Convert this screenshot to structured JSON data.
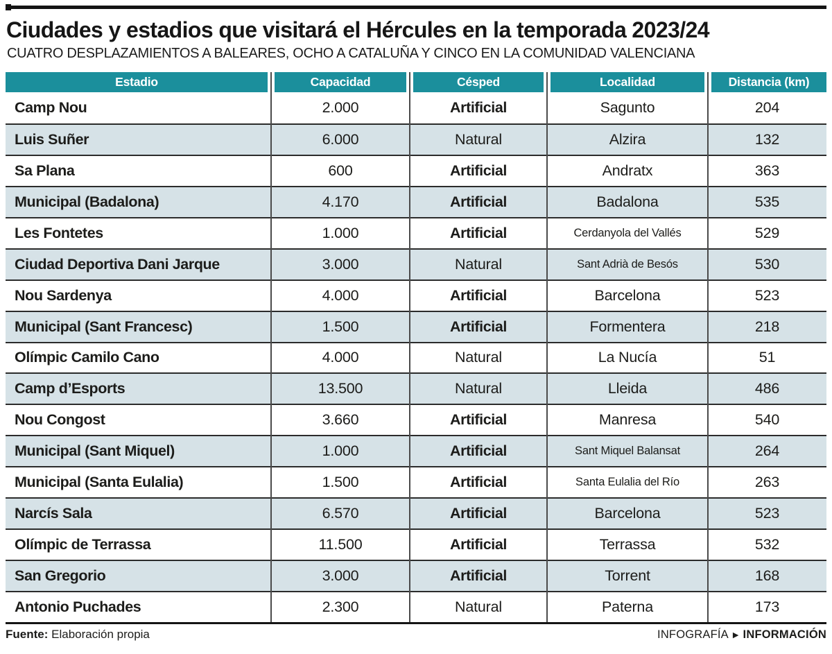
{
  "header": {
    "title": "Ciudades y estadios que visitará el Hércules en la temporada 2023/24",
    "subtitle": "CUATRO DESPLAZAMIENTOS A BALEARES, OCHO A CATALUÑA Y CINCO EN LA COMUNIDAD VALENCIANA"
  },
  "chart_data": {
    "type": "table",
    "title": "Ciudades y estadios que visitará el Hércules en la temporada 2023/24",
    "subtitle": "CUATRO DESPLAZAMIENTOS A BALEARES, OCHO A CATALUÑA Y CINCO EN LA COMUNIDAD VALENCIANA",
    "columns": [
      "Estadio",
      "Capacidad",
      "Césped",
      "Localidad",
      "Distancia (km)"
    ],
    "rows": [
      {
        "estadio": "Camp Nou",
        "capacidad": "2.000",
        "cesped": "Artificial",
        "cesped_bold": true,
        "localidad": "Sagunto",
        "localidad_small": false,
        "distancia": "204"
      },
      {
        "estadio": "Luis Suñer",
        "capacidad": "6.000",
        "cesped": "Natural",
        "cesped_bold": false,
        "localidad": "Alzira",
        "localidad_small": false,
        "distancia": "132"
      },
      {
        "estadio": "Sa Plana",
        "capacidad": "600",
        "cesped": "Artificial",
        "cesped_bold": true,
        "localidad": "Andratx",
        "localidad_small": false,
        "distancia": "363"
      },
      {
        "estadio": "Municipal (Badalona)",
        "capacidad": "4.170",
        "cesped": "Artificial",
        "cesped_bold": true,
        "localidad": "Badalona",
        "localidad_small": false,
        "distancia": "535"
      },
      {
        "estadio": "Les Fontetes",
        "capacidad": "1.000",
        "cesped": "Artificial",
        "cesped_bold": true,
        "localidad": "Cerdanyola del Vallés",
        "localidad_small": true,
        "distancia": "529"
      },
      {
        "estadio": "Ciudad Deportiva Dani Jarque",
        "capacidad": "3.000",
        "cesped": "Natural",
        "cesped_bold": false,
        "localidad": "Sant Adrià de Besós",
        "localidad_small": true,
        "distancia": "530"
      },
      {
        "estadio": "Nou Sardenya",
        "capacidad": "4.000",
        "cesped": "Artificial",
        "cesped_bold": true,
        "localidad": "Barcelona",
        "localidad_small": false,
        "distancia": "523"
      },
      {
        "estadio": "Municipal (Sant Francesc)",
        "capacidad": "1.500",
        "cesped": "Artificial",
        "cesped_bold": true,
        "localidad": "Formentera",
        "localidad_small": false,
        "distancia": "218"
      },
      {
        "estadio": "Olímpic Camilo Cano",
        "capacidad": "4.000",
        "cesped": "Natural",
        "cesped_bold": false,
        "localidad": "La Nucía",
        "localidad_small": false,
        "distancia": "51"
      },
      {
        "estadio": "Camp d’Esports",
        "capacidad": "13.500",
        "cesped": "Natural",
        "cesped_bold": false,
        "localidad": "Lleida",
        "localidad_small": false,
        "distancia": "486"
      },
      {
        "estadio": "Nou Congost",
        "capacidad": "3.660",
        "cesped": "Artificial",
        "cesped_bold": true,
        "localidad": "Manresa",
        "localidad_small": false,
        "distancia": "540"
      },
      {
        "estadio": "Municipal (Sant Miquel)",
        "capacidad": "1.000",
        "cesped": "Artificial",
        "cesped_bold": true,
        "localidad": "Sant Miquel Balansat",
        "localidad_small": true,
        "distancia": "264"
      },
      {
        "estadio": "Municipal (Santa Eulalia)",
        "capacidad": "1.500",
        "cesped": "Artificial",
        "cesped_bold": true,
        "localidad": "Santa Eulalia del Río",
        "localidad_small": true,
        "distancia": "263"
      },
      {
        "estadio": "Narcís Sala",
        "capacidad": "6.570",
        "cesped": "Artificial",
        "cesped_bold": true,
        "localidad": "Barcelona",
        "localidad_small": false,
        "distancia": "523"
      },
      {
        "estadio": "Olímpic de Terrassa",
        "capacidad": "11.500",
        "cesped": "Artificial",
        "cesped_bold": true,
        "localidad": "Terrassa",
        "localidad_small": false,
        "distancia": "532"
      },
      {
        "estadio": "San Gregorio",
        "capacidad": "3.000",
        "cesped": "Artificial",
        "cesped_bold": true,
        "localidad": "Torrent",
        "localidad_small": false,
        "distancia": "168"
      },
      {
        "estadio": "Antonio Puchades",
        "capacidad": "2.300",
        "cesped": "Natural",
        "cesped_bold": false,
        "localidad": "Paterna",
        "localidad_small": false,
        "distancia": "173"
      }
    ],
    "layout": {
      "striped": true,
      "stripe_starts_on_row": 2,
      "header_style": "teal-boxes"
    }
  },
  "footer": {
    "source_label": "Fuente:",
    "source_value": "Elaboración propia",
    "credit_left": "INFOGRAFÍA",
    "credit_arrow": "▶",
    "credit_right": "INFORMACIÓN"
  },
  "colors": {
    "teal_header": "#1b8f9c",
    "row_alt": "#d6e2e7",
    "text": "#1c1c1a",
    "row_line": "#2b2b2b",
    "column_line": "#4a4a4a",
    "rule_black": "#141414"
  }
}
